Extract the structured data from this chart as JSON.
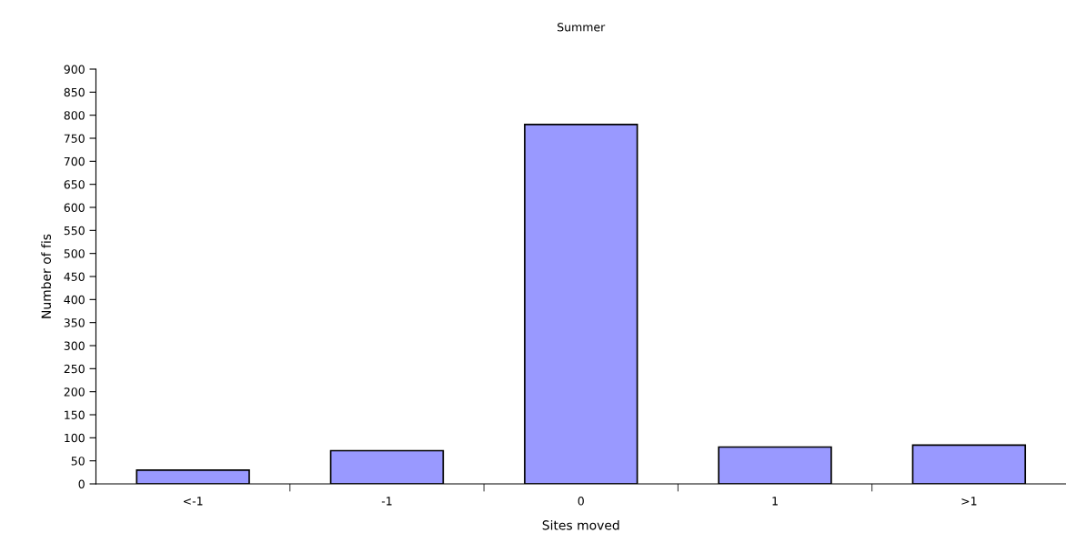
{
  "chart_data": {
    "type": "bar",
    "title": "Summer",
    "xlabel": "Sites moved",
    "ylabel": "Number of fis",
    "categories": [
      "<-1",
      "-1",
      "0",
      "1",
      ">1"
    ],
    "values": [
      30,
      72,
      780,
      80,
      84
    ],
    "color": "#9999ff",
    "ylim": [
      0,
      900
    ],
    "yticks": [
      0,
      50,
      100,
      150,
      200,
      250,
      300,
      350,
      400,
      450,
      500,
      550,
      600,
      650,
      700,
      750,
      800,
      850,
      900
    ],
    "grid": false,
    "legend": false
  }
}
